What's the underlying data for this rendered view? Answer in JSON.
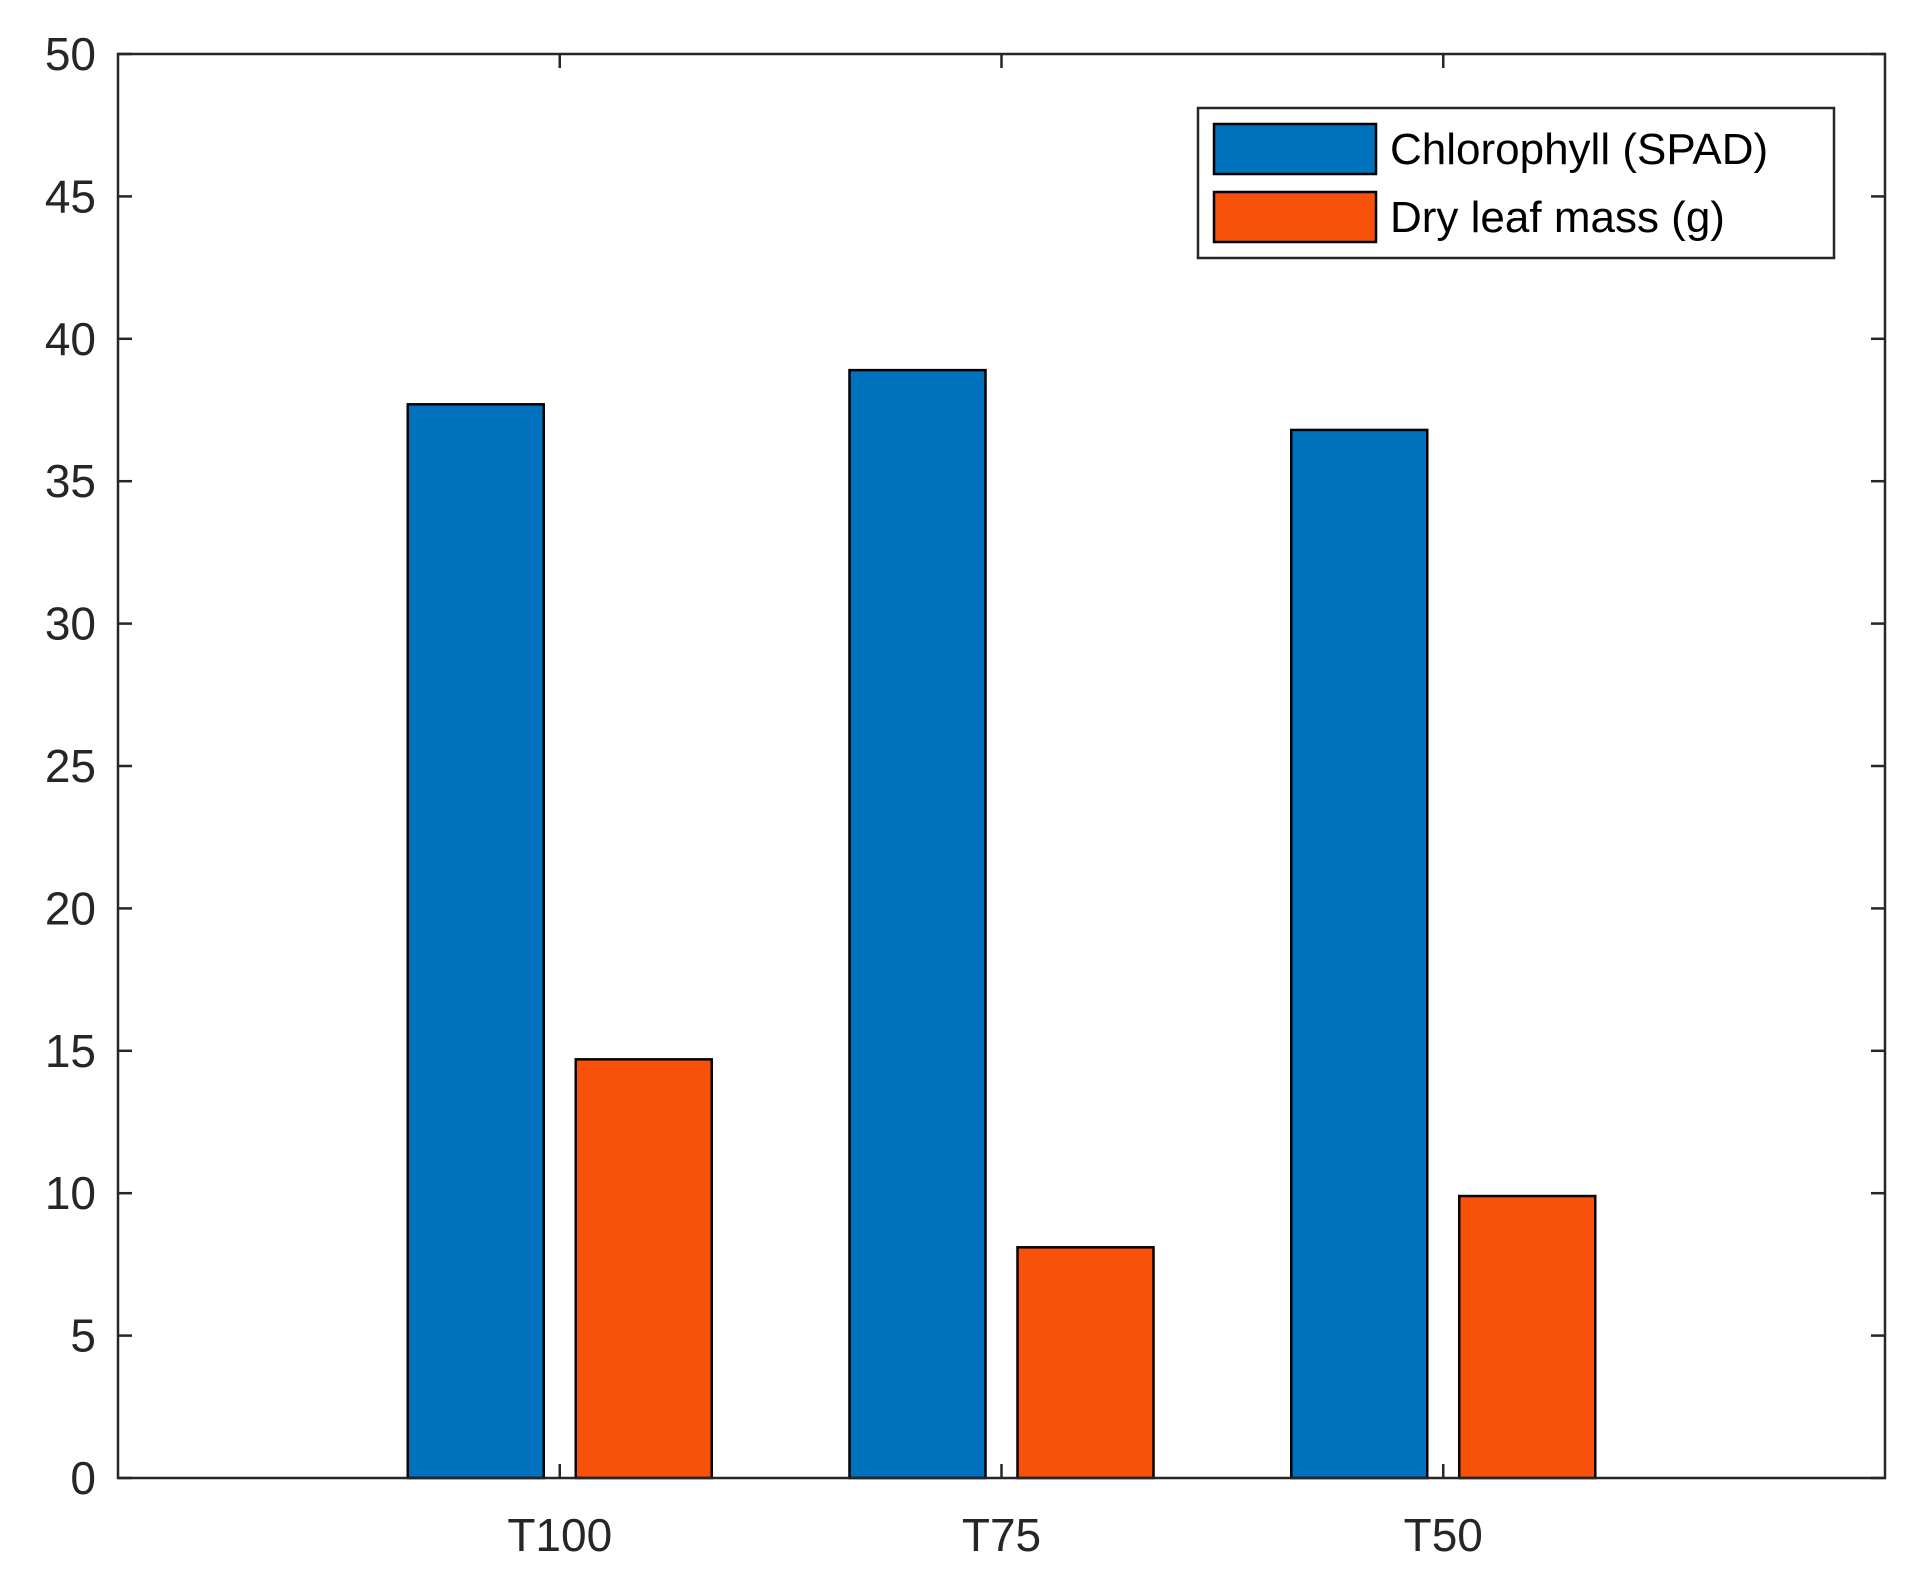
{
  "chart_data": {
    "type": "bar",
    "title": "",
    "xlabel": "",
    "ylabel": "",
    "categories": [
      "T100",
      "T75",
      "T50"
    ],
    "series": [
      {
        "name": "Chlorophyll (SPAD)",
        "color": "#0072BD",
        "values": [
          37.7,
          38.9,
          36.8
        ]
      },
      {
        "name": "Dry leaf mass (g)",
        "color": "#F7510A",
        "values": [
          14.7,
          8.1,
          9.9
        ]
      }
    ],
    "ylim": [
      0,
      50
    ],
    "yticks": [
      0,
      5,
      10,
      15,
      20,
      25,
      30,
      35,
      40,
      45,
      50
    ],
    "grid": false,
    "legend_position": "top-right"
  }
}
